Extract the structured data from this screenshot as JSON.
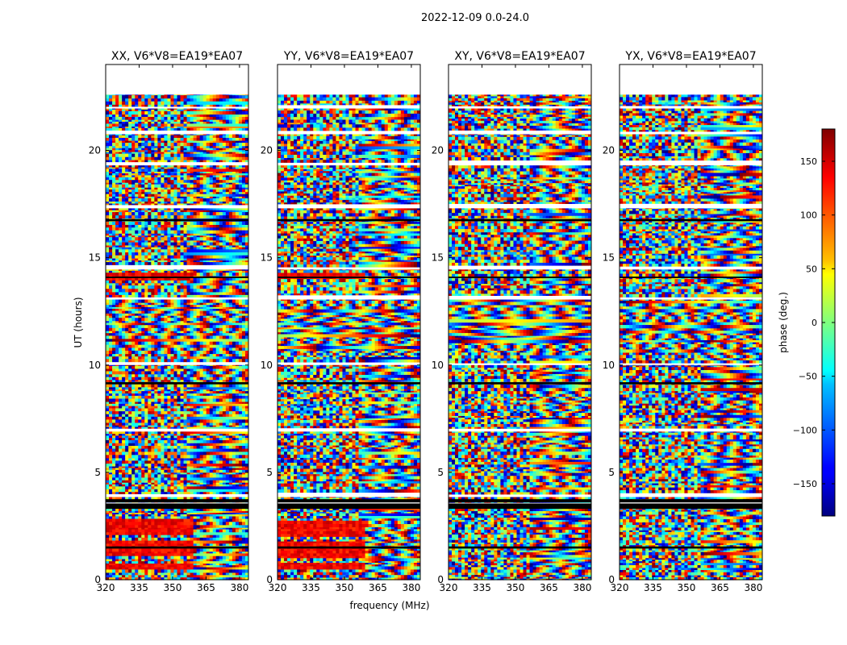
{
  "chart_data": {
    "type": "heatmap",
    "suptitle": "2022-12-09 0.0-24.0",
    "xlabel": "frequency (MHz)",
    "ylabel": "UT (hours)",
    "xlim": [
      320,
      384
    ],
    "ylim": [
      0,
      24
    ],
    "xticks": [
      320,
      335,
      350,
      365,
      380
    ],
    "yticks": [
      0,
      5,
      10,
      15,
      20
    ],
    "panels": [
      {
        "title": "XX, V6*V8=EA19*EA07",
        "hot_low_band": true
      },
      {
        "title": "YY, V6*V8=EA19*EA07",
        "hot_low_band": true
      },
      {
        "title": "XY, V6*V8=EA19*EA07",
        "hot_low_band": false
      },
      {
        "title": "YX, V6*V8=EA19*EA07",
        "hot_low_band": false
      }
    ],
    "colorbar": {
      "label": "phase (deg.)",
      "range": [
        -180,
        180
      ],
      "ticks": [
        150,
        100,
        50,
        0,
        -50,
        -100,
        -150
      ],
      "tick_labels": [
        "150",
        "100",
        "50",
        "0",
        "−50",
        "−100",
        "−150"
      ],
      "colormap": "jet"
    },
    "data_coverage_hours": [
      0,
      22.6
    ],
    "gaps_hours": [
      [
        3.45,
        3.55
      ],
      [
        3.85,
        3.95
      ],
      [
        6.9,
        7.0
      ],
      [
        10.0,
        10.08
      ],
      [
        13.05,
        13.15
      ],
      [
        14.45,
        14.55
      ],
      [
        17.3,
        17.45
      ],
      [
        19.3,
        19.42
      ],
      [
        20.75,
        20.85
      ],
      [
        21.95,
        22.03
      ]
    ],
    "black_bands_hours": [
      [
        3.3,
        3.55
      ],
      [
        3.6,
        3.75
      ],
      [
        1.45,
        1.55
      ],
      [
        9.1,
        9.2
      ],
      [
        14.05,
        14.12
      ],
      [
        16.7,
        16.8
      ]
    ]
  }
}
